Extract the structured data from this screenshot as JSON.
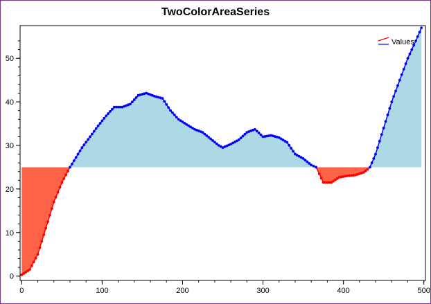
{
  "chart_data": {
    "type": "area",
    "title": "TwoColorAreaSeries",
    "xlabel": "",
    "ylabel": "",
    "xlim": [
      -2,
      502
    ],
    "ylim": [
      -1,
      57.5
    ],
    "x_ticks": [
      0,
      100,
      200,
      300,
      400,
      500
    ],
    "y_ticks": [
      0,
      10,
      20,
      30,
      40,
      50
    ],
    "limit": 25,
    "colors": {
      "above_fill": "#ADD8E6",
      "below_fill": "#FF6347",
      "above_line": "#0000FF",
      "below_line": "#FF0000"
    },
    "legend": {
      "position": "top-right",
      "entries": [
        "Values"
      ]
    },
    "series": [
      {
        "name": "Values",
        "x": [
          0,
          10,
          20,
          30,
          40,
          50,
          60,
          65,
          75,
          85,
          95,
          105,
          115,
          125,
          135,
          145,
          155,
          165,
          175,
          185,
          195,
          205,
          215,
          225,
          235,
          245,
          250,
          260,
          270,
          280,
          290,
          300,
          310,
          320,
          330,
          340,
          350,
          360,
          366,
          370,
          375,
          385,
          395,
          405,
          415,
          425,
          430,
          433,
          440,
          450,
          460,
          470,
          480,
          490,
          497
        ],
        "values": [
          0.3,
          1.5,
          5,
          11,
          17,
          21.5,
          25,
          26.5,
          29.5,
          32,
          34.5,
          36.8,
          38.8,
          38.8,
          39.5,
          41.5,
          42,
          41.3,
          40.8,
          38,
          36,
          34.8,
          33.7,
          33,
          31.5,
          30,
          29.5,
          30.3,
          31.3,
          33,
          33.7,
          32,
          32.3,
          31.8,
          30.7,
          28,
          27,
          25.5,
          25,
          23.5,
          21.5,
          21.5,
          22.7,
          23,
          23.2,
          23.8,
          24.5,
          25,
          28,
          34,
          40,
          45,
          50,
          54,
          57
        ]
      }
    ]
  }
}
